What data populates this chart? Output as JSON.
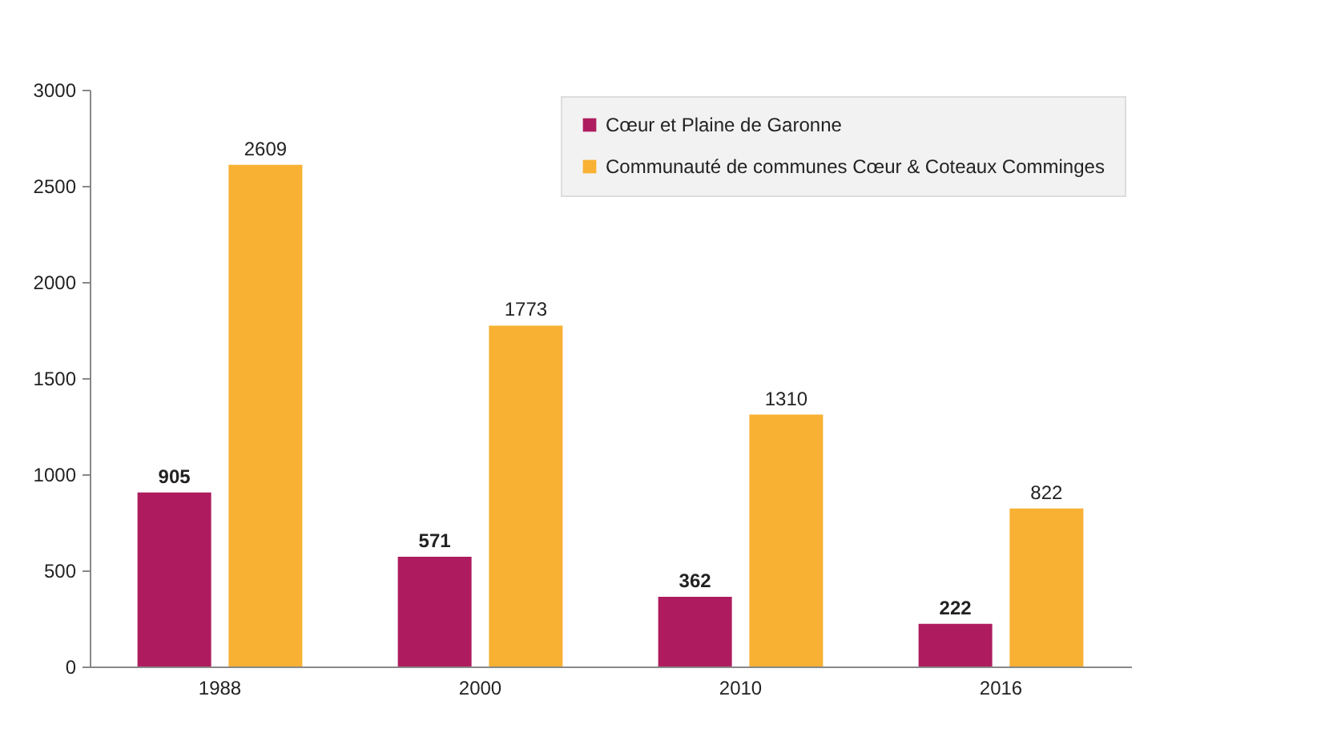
{
  "chart_data": {
    "type": "bar",
    "categories": [
      "1988",
      "2000",
      "2010",
      "2016"
    ],
    "series": [
      {
        "name": "Cœur et Plaine de Garonne",
        "color": "#ae1c5f",
        "values": [
          905,
          571,
          362,
          222
        ]
      },
      {
        "name": "Communauté de communes Cœur & Coteaux Comminges",
        "color": "#f8b133",
        "values": [
          2609,
          1773,
          1310,
          822
        ]
      }
    ],
    "ylim": [
      0,
      3000
    ],
    "yticks": [
      0,
      500,
      1000,
      1500,
      2000,
      2500,
      3000
    ],
    "grid": false,
    "legend": "top right",
    "data_labels": true
  }
}
